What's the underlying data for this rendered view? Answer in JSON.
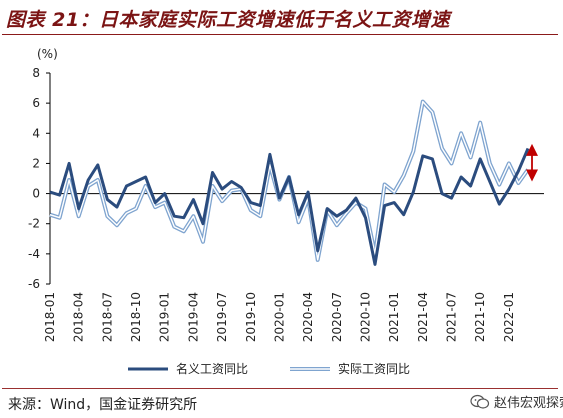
{
  "title": "图表 21：日本家庭实际工资增速低于名义工资增速",
  "source": "来源：Wind，国金证券研究所",
  "watermark": "赵伟宏观探索",
  "colors": {
    "nominal": "#2b4c7e",
    "real_outer": "#7fa4cf",
    "real_inner": "#ffffff",
    "arrow": "#c00000",
    "axis": "#000000",
    "title": "#7b1414"
  },
  "chart_data": {
    "type": "line",
    "unit_label": "(%)",
    "ylim": [
      -6,
      8
    ],
    "yticks": [
      -6,
      -4,
      -2,
      0,
      2,
      4,
      6,
      8
    ],
    "x_start": "2018-01",
    "x_end": "2022-03",
    "xticks": [
      "2018-01",
      "2018-04",
      "2018-07",
      "2018-10",
      "2019-01",
      "2019-04",
      "2019-07",
      "2019-10",
      "2020-01",
      "2020-04",
      "2020-07",
      "2020-10",
      "2021-01",
      "2021-04",
      "2021-07",
      "2021-10",
      "2022-01"
    ],
    "legend": [
      "名义工资同比",
      "实际工资同比"
    ],
    "series": [
      {
        "name": "名义工资同比",
        "values": [
          0.1,
          -0.1,
          2.0,
          -1.0,
          0.9,
          1.9,
          -0.4,
          -0.9,
          0.5,
          0.8,
          1.1,
          -0.6,
          0.0,
          -1.5,
          -1.6,
          -0.4,
          -2.0,
          1.4,
          0.3,
          0.8,
          0.4,
          -0.6,
          -0.8,
          2.6,
          -0.3,
          1.1,
          -1.4,
          0.1,
          -3.8,
          -1.0,
          -1.5,
          -1.1,
          -0.3,
          -1.6,
          -4.7,
          -0.8,
          -0.6,
          -1.4,
          0.1,
          2.5,
          2.3,
          0.0,
          -0.3,
          1.1,
          0.5,
          2.3,
          0.8,
          -0.7,
          0.3,
          1.5,
          3.0
        ]
      },
      {
        "name": "实际工资同比",
        "values": [
          -1.4,
          -1.6,
          0.9,
          -1.5,
          0.5,
          0.9,
          -1.5,
          -2.1,
          -1.3,
          -1.0,
          0.5,
          -0.9,
          -0.6,
          -2.2,
          -2.5,
          -1.5,
          -3.2,
          0.5,
          -0.5,
          0.2,
          0.3,
          -1.1,
          -1.5,
          1.9,
          -0.4,
          1.1,
          -1.9,
          -0.3,
          -4.4,
          -1.1,
          -2.1,
          -1.3,
          -0.6,
          -1.0,
          -4.0,
          0.6,
          0.1,
          1.2,
          2.8,
          6.1,
          5.4,
          3.0,
          2.0,
          4.0,
          2.4,
          4.7,
          2.0,
          0.6,
          2.0,
          0.7,
          1.6
        ]
      }
    ]
  }
}
